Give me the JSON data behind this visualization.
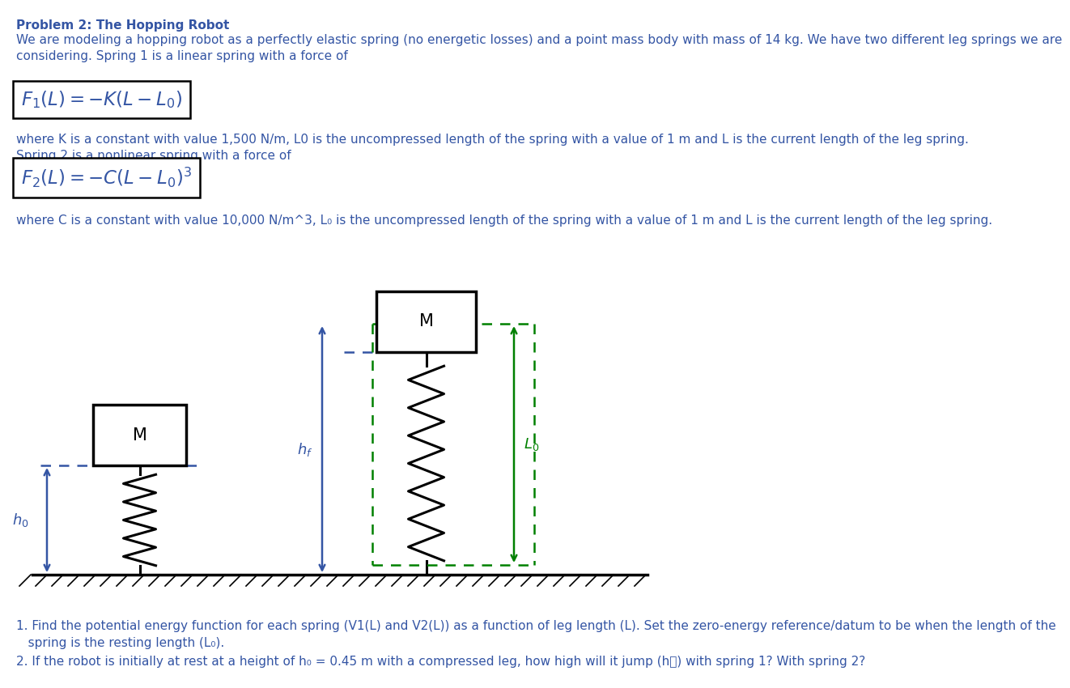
{
  "title": "Problem 2: The Hopping Robot",
  "body_text1": "We are modeling a hopping robot as a perfectly elastic spring (no energetic losses) and a point mass body with mass of 14 kg. We have two different leg springs we are\nconsidering. Spring 1 is a linear spring with a force of",
  "formula1": "$F_1(L) = -K(L - L_0)$",
  "body_text2": "where K is a constant with value 1,500 N/m, L0 is the uncompressed length of the spring with a value of 1 m and L is the current length of the leg spring.",
  "body_text3": "Spring 2 is a nonlinear spring with a force of",
  "formula2": "$F_2(L) = -C(L - L_0)^3$",
  "body_text4": "where C is a constant with value 10,000 N/m^3, L₀ is the uncompressed length of the spring with a value of 1 m and L is the current length of the leg spring.",
  "question1": "1. Find the potential energy function for each spring (V1(L) and V2(L)) as a function of leg length (L). Set the zero-energy reference/datum to be when the length of the\n   spring is the resting length (L₀).",
  "question2": "2. If the robot is initially at rest at a height of h₀ = 0.45 m with a compressed leg, how high will it jump (h⁦) with spring 1? With spring 2?",
  "text_color": "#3455A4",
  "spring_color": "#000000",
  "arrow_blue": "#3455A4",
  "arrow_green": "#008000",
  "dashed_blue": "#3455A4",
  "dashed_green": "#008000",
  "box_color": "#000000",
  "ground_color": "#000000",
  "bg_color": "#ffffff"
}
